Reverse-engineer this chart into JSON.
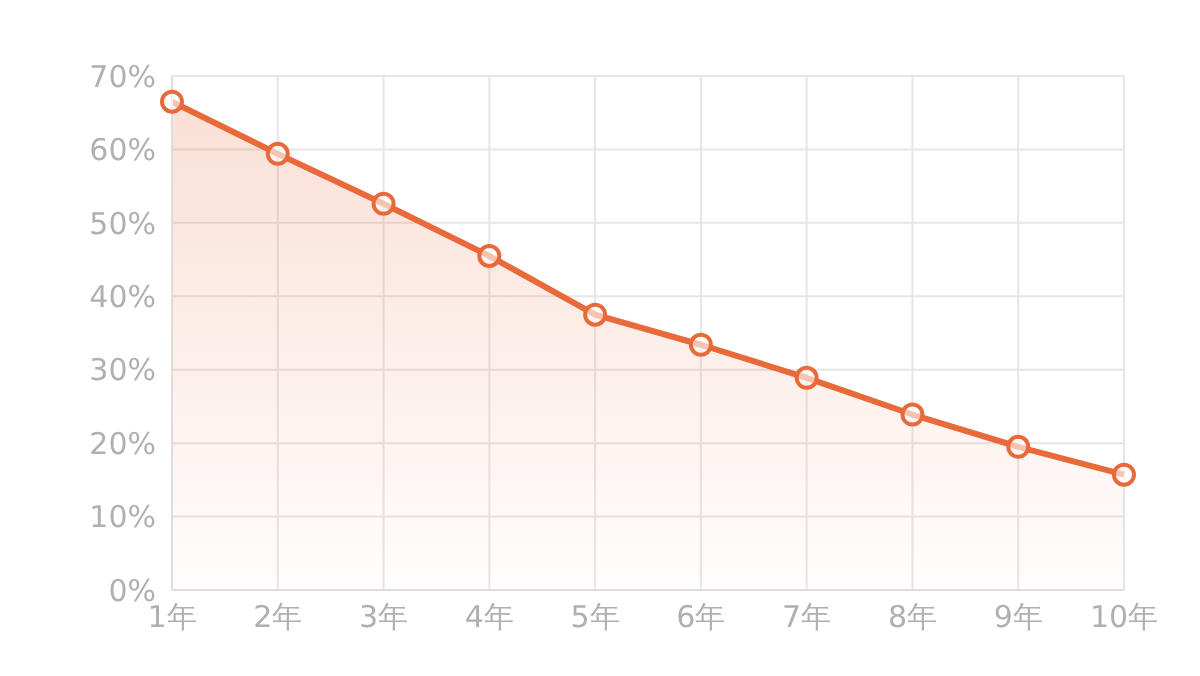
{
  "chart_data": {
    "type": "area",
    "categories": [
      "1年",
      "2年",
      "3年",
      "4年",
      "5年",
      "6年",
      "7年",
      "8年",
      "9年",
      "10年"
    ],
    "series": [
      {
        "color": "#e8693a",
        "values": [
          66.5,
          59.4,
          52.6,
          45.5,
          37.5,
          33.4,
          28.9,
          23.9,
          19.5,
          15.7
        ]
      }
    ],
    "ylim": [
      0,
      70
    ],
    "yticks": [
      {
        "value": 0,
        "label": "0%"
      },
      {
        "value": 10,
        "label": "10%"
      },
      {
        "value": 20,
        "label": "20%"
      },
      {
        "value": 30,
        "label": "30%"
      },
      {
        "value": 40,
        "label": "40%"
      },
      {
        "value": 50,
        "label": "50%"
      },
      {
        "value": 60,
        "label": "60%"
      },
      {
        "value": 70,
        "label": "70%"
      }
    ],
    "grid": true,
    "marker": "circle",
    "line_style": "solid"
  }
}
